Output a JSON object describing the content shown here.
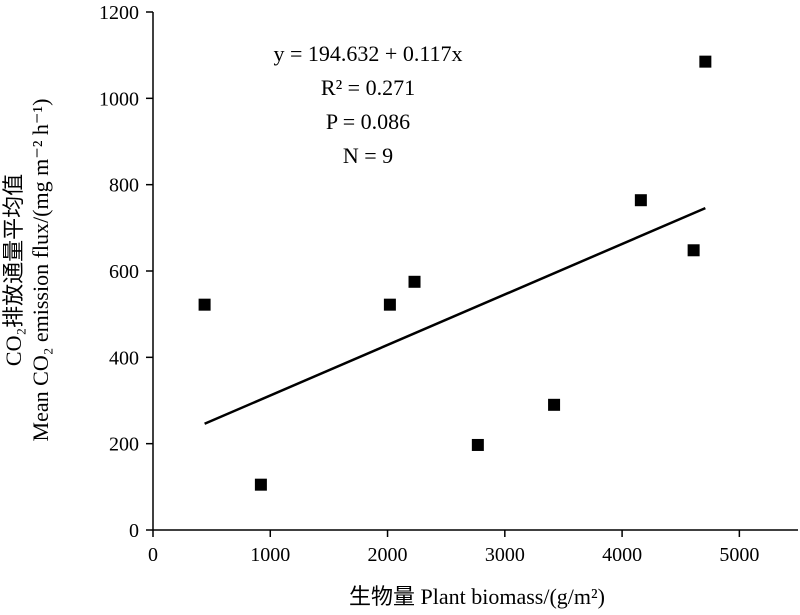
{
  "chart_data": {
    "type": "scatter",
    "xlabel": "生物量 Plant biomass/(g/m²)",
    "ylabel_line1": "CO₂排放通量平均值",
    "ylabel_line2": "Mean CO₂ emission flux/(mg m⁻² h⁻¹)",
    "xlim": [
      0,
      5500
    ],
    "ylim": [
      0,
      1200
    ],
    "xticks": [
      "0",
      "1000",
      "2000",
      "3000",
      "4000",
      "5000"
    ],
    "yticks": [
      "0",
      "200",
      "400",
      "600",
      "800",
      "1000",
      "1200"
    ],
    "x": [
      440,
      920,
      2020,
      2230,
      2770,
      3420,
      4160,
      4610,
      4710
    ],
    "y": [
      522,
      105,
      522,
      575,
      197,
      290,
      764,
      648,
      1085
    ],
    "trendline": {
      "intercept": 194.632,
      "slope": 0.117,
      "x_range": [
        440,
        4710
      ]
    },
    "annotations": [
      "y = 194.632 + 0.117x",
      "R² = 0.271",
      "P = 0.086",
      "N = 9"
    ],
    "grid": false,
    "legend": "none"
  }
}
